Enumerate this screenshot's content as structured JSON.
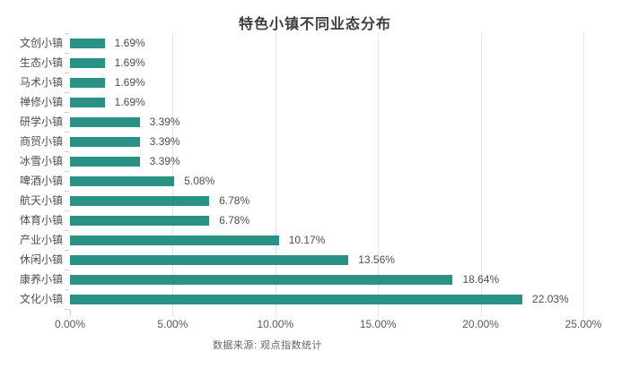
{
  "chart_data": {
    "type": "bar",
    "orientation": "horizontal",
    "title": "特色小镇不同业态分布",
    "categories": [
      "文创小镇",
      "生态小镇",
      "马术小镇",
      "禅修小镇",
      "研学小镇",
      "商贸小镇",
      "冰雪小镇",
      "啤酒小镇",
      "航天小镇",
      "体育小镇",
      "产业小镇",
      "休闲小镇",
      "康养小镇",
      "文化小镇"
    ],
    "values": [
      1.69,
      1.69,
      1.69,
      1.69,
      3.39,
      3.39,
      3.39,
      5.08,
      6.78,
      6.78,
      10.17,
      13.56,
      18.64,
      22.03
    ],
    "value_labels": [
      "1.69%",
      "1.69%",
      "1.69%",
      "1.69%",
      "3.39%",
      "3.39%",
      "3.39%",
      "5.08%",
      "6.78%",
      "6.78%",
      "10.17%",
      "13.56%",
      "18.64%",
      "22.03%"
    ],
    "xlim": [
      0,
      25
    ],
    "x_ticks": [
      {
        "label": "0.00%",
        "value": 0
      },
      {
        "label": "5.00%",
        "value": 5
      },
      {
        "label": "10.00%",
        "value": 10
      },
      {
        "label": "15.00%",
        "value": 15
      },
      {
        "label": "20.00%",
        "value": 20
      },
      {
        "label": "25.00%",
        "value": 25
      }
    ],
    "grid": true,
    "legend": "none",
    "source_note": "数据来源: 观点指数统计",
    "colors": {
      "bar": "#2a9285",
      "grid": "#e3e3e3",
      "tick": "#cccccc",
      "title": "#3d3d3d",
      "label": "#4d4d4d",
      "axis_label": "#595959",
      "source": "#666666",
      "background": "#ffffff"
    }
  }
}
